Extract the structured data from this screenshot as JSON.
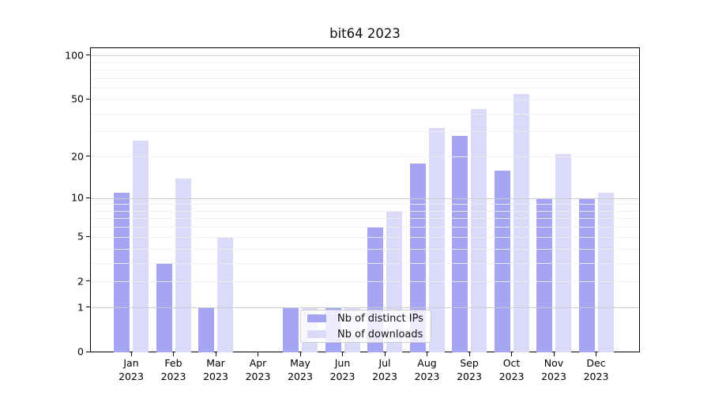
{
  "chart_data": {
    "type": "bar",
    "title": "bit64 2023",
    "categories": [
      "Jan",
      "Feb",
      "Mar",
      "Apr",
      "May",
      "Jun",
      "Jul",
      "Aug",
      "Sep",
      "Oct",
      "Nov",
      "Dec"
    ],
    "year_label": "2023",
    "series": [
      {
        "name": "Nb of distinct IPs",
        "color": "#a5a5f4",
        "values": [
          11,
          3,
          1,
          0,
          1,
          1,
          6,
          18,
          28,
          16,
          10,
          10
        ]
      },
      {
        "name": "Nb of downloads",
        "color": "#dbdbf9",
        "values": [
          26,
          14,
          5,
          0,
          1,
          1,
          8,
          32,
          43,
          55,
          21,
          11
        ]
      }
    ],
    "yscale": "log1p",
    "ylim": [
      0,
      114
    ],
    "yticks": [
      0,
      1,
      2,
      5,
      10,
      20,
      50,
      100
    ],
    "major_gridlines": [
      1,
      10,
      100
    ],
    "minor_gridlines": [
      2,
      3,
      4,
      5,
      6,
      7,
      8,
      9,
      20,
      30,
      40,
      50,
      60,
      70,
      80,
      90
    ],
    "grid": true,
    "legend_position": "lower-center"
  },
  "colors": {
    "major_grid": "#cbcbcb",
    "minor_grid": "#efefef",
    "spine": "#000000",
    "text": "#000000",
    "legend_border": "#cccccc"
  }
}
